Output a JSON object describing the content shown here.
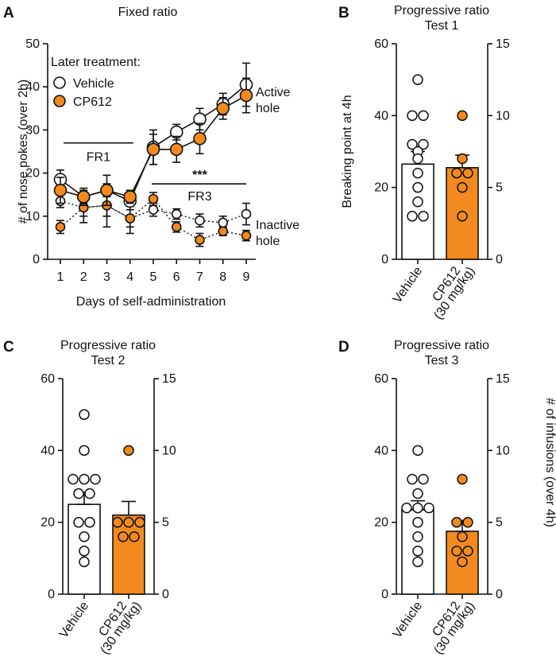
{
  "colors": {
    "vehicle_fill": "#ffffff",
    "cp612": "#f28a1e",
    "stroke": "#111111"
  },
  "chart_data": [
    {
      "panel": "A",
      "type": "line",
      "title": "Fixed ratio",
      "xlabel": "Days of self-administration",
      "ylabel": "# of nose pokes (over 2h)",
      "x": [
        1,
        2,
        3,
        4,
        5,
        6,
        7,
        8,
        9
      ],
      "x_ticks": [
        "1",
        "2",
        "3",
        "4",
        "5",
        "6",
        "7",
        "8",
        "9"
      ],
      "ylim": [
        0,
        50
      ],
      "y_ticks": [
        "0",
        "10",
        "20",
        "30",
        "40",
        "50"
      ],
      "legend_title": "Later treatment:",
      "legend": [
        "Vehicle",
        "CP612"
      ],
      "series": [
        {
          "name": "Vehicle",
          "hole": "active",
          "style": "solid",
          "values": [
            18.5,
            14.5,
            16,
            13.5,
            26,
            29.5,
            32.5,
            36,
            40.5
          ],
          "errors": [
            2.2,
            1.5,
            1.5,
            1.2,
            4,
            1.8,
            2.5,
            2.5,
            5
          ]
        },
        {
          "name": "CP612",
          "hole": "active",
          "style": "solid",
          "values": [
            16,
            14.5,
            16,
            14.5,
            25.5,
            25.5,
            28,
            35,
            38
          ],
          "errors": [
            3,
            2,
            3.5,
            1.5,
            3.5,
            3,
            3.5,
            2.5,
            4
          ]
        },
        {
          "name": "Vehicle",
          "hole": "inactive",
          "style": "dotted",
          "values": [
            13.5,
            12,
            12.5,
            9.5,
            11.5,
            10.5,
            9,
            8.5,
            10.5
          ],
          "errors": [
            1.5,
            2,
            2.5,
            2,
            1.5,
            1.2,
            1.5,
            1.5,
            2.5
          ]
        },
        {
          "name": "CP612",
          "hole": "inactive",
          "style": "dotted",
          "values": [
            7.5,
            12,
            12.5,
            9.5,
            14,
            7.5,
            4.5,
            6.5,
            5.5
          ],
          "errors": [
            1.5,
            3.5,
            5,
            3.5,
            1.5,
            1.2,
            1.5,
            1,
            1.2
          ]
        }
      ],
      "annotations": {
        "fr1": {
          "label": "FR1",
          "x_from": 1,
          "x_to": 4,
          "y": 27
        },
        "fr3": {
          "label": "FR3",
          "x_from": 5,
          "x_to": 9,
          "y": 17.5
        },
        "significance": "***",
        "active_label": [
          "Active",
          "hole"
        ],
        "inactive_label": [
          "Inactive",
          "hole"
        ]
      }
    },
    {
      "panel": "B",
      "type": "bar",
      "title": [
        "Progressive ratio",
        "Test 1"
      ],
      "ylabel": "Breaking point at 4h",
      "ylabel_right": "",
      "ylim": [
        0,
        60
      ],
      "y_ticks": [
        "0",
        "20",
        "40",
        "60"
      ],
      "ylim_right": [
        0,
        15
      ],
      "y_ticks_right": [
        "0",
        "5",
        "10",
        "15"
      ],
      "categories": [
        [
          "Vehicle"
        ],
        [
          "CP612",
          "(30 mg/kg)"
        ]
      ],
      "values": [
        26.5,
        25.5
      ],
      "errors": [
        3.5,
        3.5
      ],
      "points": [
        [
          50,
          40,
          40,
          32,
          32,
          30,
          28,
          24,
          20,
          16,
          12,
          12
        ],
        [
          40,
          28,
          24,
          24,
          20,
          12
        ]
      ]
    },
    {
      "panel": "C",
      "type": "bar",
      "title": [
        "Progressive ratio",
        "Test 2"
      ],
      "ylabel": "",
      "ylabel_right": "",
      "ylim": [
        0,
        60
      ],
      "y_ticks": [
        "0",
        "20",
        "40",
        "60"
      ],
      "ylim_right": [
        0,
        15
      ],
      "y_ticks_right": [
        "0",
        "5",
        "10",
        "15"
      ],
      "categories": [
        [
          "Vehicle"
        ],
        [
          "CP612",
          "(30 mg/kg)"
        ]
      ],
      "values": [
        25,
        22
      ],
      "errors": [
        3.3,
        3.8
      ],
      "points": [
        [
          50,
          40,
          32,
          32,
          32,
          28,
          28,
          20,
          20,
          16,
          12,
          9
        ],
        [
          40,
          20,
          20,
          20,
          16,
          16
        ]
      ]
    },
    {
      "panel": "D",
      "type": "bar",
      "title": [
        "Progressive ratio",
        "Test 3"
      ],
      "ylabel": "",
      "ylabel_right": "# of infusions (over 4h)",
      "ylim": [
        0,
        60
      ],
      "y_ticks": [
        "0",
        "20",
        "40",
        "60"
      ],
      "ylim_right": [
        0,
        15
      ],
      "y_ticks_right": [
        "0",
        "5",
        "10",
        "15"
      ],
      "categories": [
        [
          "Vehicle"
        ],
        [
          "CP612",
          "(30 mg/kg)"
        ]
      ],
      "values": [
        23.5,
        17.5
      ],
      "errors": [
        2.5,
        3
      ],
      "points": [
        [
          40,
          32,
          32,
          28,
          24,
          24,
          24,
          20,
          16,
          12,
          9
        ],
        [
          32,
          20,
          20,
          16,
          12,
          12,
          9
        ]
      ]
    }
  ]
}
